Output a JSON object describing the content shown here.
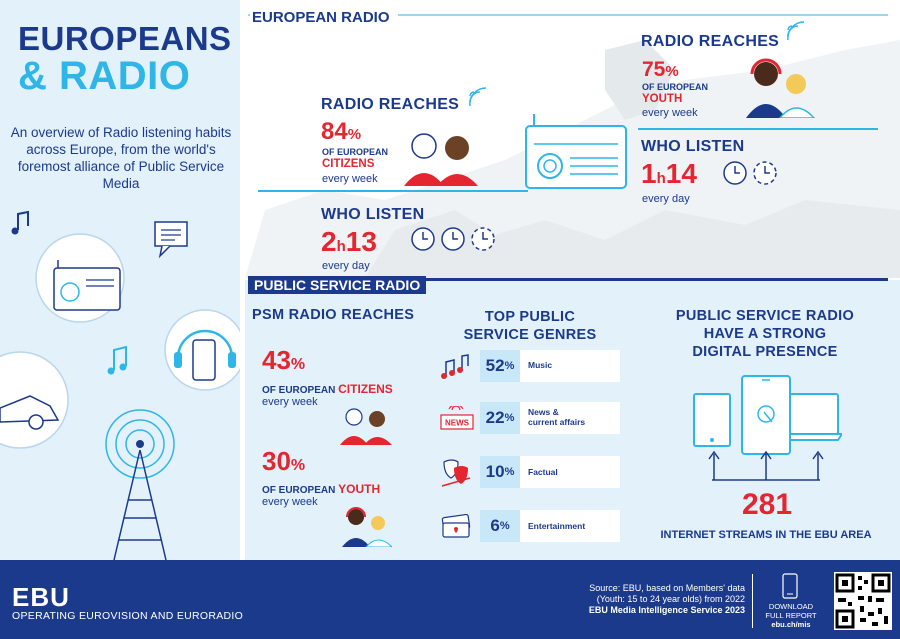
{
  "title": {
    "line1": "EUROPEANS",
    "line2": "& RADIO"
  },
  "intro": "An overview of Radio listening habits across Europe, from the world's foremost alliance of Public Service Media",
  "european_radio": {
    "header": "EUROPEAN RADIO",
    "citizens_reach": {
      "heading": "RADIO REACHES",
      "value": "84",
      "unit": "%",
      "line1": "OF EUROPEAN",
      "line2": "CITIZENS",
      "line3": "every week"
    },
    "youth_reach": {
      "heading": "RADIO REACHES",
      "value": "75",
      "unit": "%",
      "line1": "OF EUROPEAN",
      "line2": "YOUTH",
      "line3": "every week"
    },
    "citizens_listen": {
      "heading": "WHO LISTEN",
      "hours": "2",
      "h": "h",
      "minutes": "13",
      "caption": "every day"
    },
    "youth_listen": {
      "heading": "WHO LISTEN",
      "hours": "1",
      "h": "h",
      "minutes": "14",
      "caption": "every day"
    }
  },
  "public_service_radio": {
    "header": "PUBLIC SERVICE RADIO",
    "psm": {
      "heading": "PSM RADIO REACHES",
      "citizens": {
        "value": "43",
        "unit": "%",
        "line1": "OF EUROPEAN ",
        "line1_red": "CITIZENS",
        "line2": "every week"
      },
      "youth": {
        "value": "30",
        "unit": "%",
        "line1": "OF EUROPEAN ",
        "line1_red": "YOUTH",
        "line2": "every week"
      }
    },
    "genres": {
      "heading_line1": "TOP PUBLIC",
      "heading_line2": "SERVICE GENRES",
      "items": [
        {
          "value": "52",
          "unit": "%",
          "label": "Music",
          "icon": "music-notes-icon"
        },
        {
          "value": "22",
          "unit": "%",
          "label": "News &",
          "label2": "current affairs",
          "icon": "news-icon",
          "icon_text": "NEWS"
        },
        {
          "value": "10",
          "unit": "%",
          "label": "Factual",
          "icon": "theatre-masks-icon"
        },
        {
          "value": "6",
          "unit": "%",
          "label": "Entertainment",
          "icon": "tickets-icon"
        }
      ]
    },
    "digital": {
      "heading_line1": "PUBLIC SERVICE RADIO",
      "heading_line2": "HAVE A STRONG",
      "heading_line3": "DIGITAL PRESENCE",
      "streams": "281",
      "streams_label": "INTERNET STREAMS IN THE EBU AREA"
    }
  },
  "footer": {
    "logo": "EBU",
    "tagline": "OPERATING EUROVISION AND EURORADIO",
    "source_line1": "Source: EBU, based on Members' data",
    "source_line2": "(Youth: 15 to 24 year olds) from 2022",
    "source_line3": "EBU Media Intelligence Service 2023",
    "download_line1": "DOWNLOAD",
    "download_line2": "FULL REPORT",
    "download_url": "ebu.ch/mis"
  },
  "colors": {
    "navy": "#1c3a8c",
    "red": "#e3262f",
    "cyan": "#2eb6e8",
    "pale_blue": "#e3f1fb"
  }
}
